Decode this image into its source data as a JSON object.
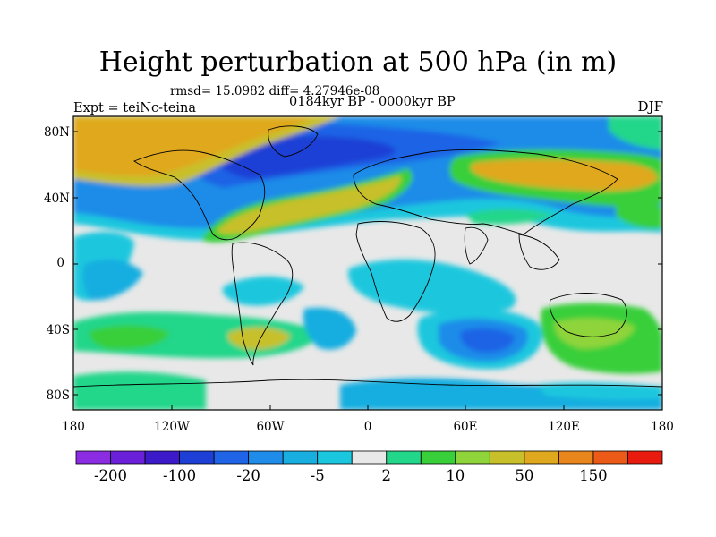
{
  "title": "Height perturbation at 500 hPa (in m)",
  "stats_line": "rmsd= 15.0982 diff= 4.27946e-08",
  "experiment": "Expt = teiNc-teina",
  "period": "0184kyr BP - 0000kyr BP",
  "season": "DJF",
  "lat_labels": [
    "80N",
    "40N",
    "0",
    "40S",
    "80S"
  ],
  "lon_labels": [
    "180",
    "120W",
    "60W",
    "0",
    "60E",
    "120E",
    "180"
  ],
  "colorbar": {
    "colors": [
      "#8b2be2",
      "#6a1fd8",
      "#3d1ac9",
      "#1e3fd6",
      "#1f64e6",
      "#1e8ce8",
      "#18aee0",
      "#1ac7de",
      "#e8e8e8",
      "#22d68a",
      "#38cf3a",
      "#8fd43a",
      "#c8c02a",
      "#e0a81e",
      "#e8851c",
      "#ec5a18",
      "#e81b0e"
    ],
    "tick_labels": [
      "-200",
      "-100",
      "-20",
      "-5",
      "2",
      "10",
      "50",
      "150"
    ]
  }
}
